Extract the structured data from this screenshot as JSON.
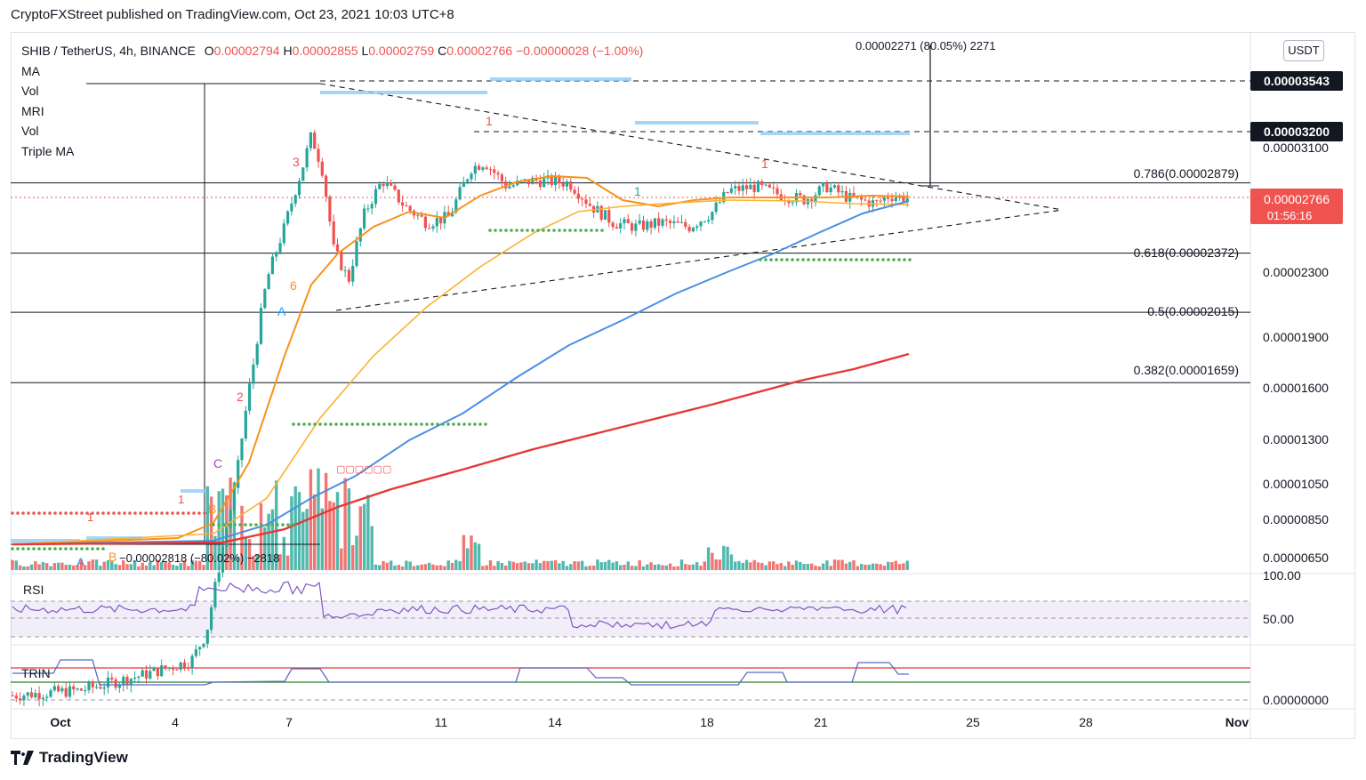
{
  "header": {
    "publisher_line": "CryptoFXStreet published on TradingView.com, Oct 23, 2021 10:03 UTC+8"
  },
  "footer": {
    "brand": "TradingView"
  },
  "legend": {
    "symbol": "SHIB / TetherUS, 4h, BINANCE",
    "o_label": "O",
    "o_value": "0.00002794",
    "h_label": "H",
    "h_value": "0.00002855",
    "l_label": "L",
    "l_value": "0.00002759",
    "c_label": "C",
    "c_value": "0.00002766",
    "change": "−0.00000028 (−1.00%)",
    "indicators": [
      "MA",
      "Vol",
      "MRI",
      "Vol",
      "Triple MA"
    ]
  },
  "currency_button": "USDT",
  "colors": {
    "up": "#26a69a",
    "down": "#ef5350",
    "ma_orange": "#f7931a",
    "ma_yellow": "#f9b234",
    "ma_blue": "#4a90e2",
    "ma_red": "#e53935",
    "rsi": "#7e57c2",
    "trin": "#5c6bc0"
  },
  "chart_data": {
    "type": "candlestick",
    "x_ticks": [
      "Oct",
      "4",
      "7",
      "11",
      "14",
      "18",
      "21",
      "25",
      "28",
      "Nov"
    ],
    "y_ticks": [
      "0.00003100",
      "0.00002300",
      "0.00001900",
      "0.00001600",
      "0.00001300",
      "0.00001050",
      "0.00000850",
      "0.00000650"
    ],
    "price_tags": [
      {
        "label": "0.00003543",
        "style": "dark"
      },
      {
        "label": "0.00003200",
        "style": "dark"
      },
      {
        "label": "0.00002766",
        "sub": "01:56:16",
        "style": "red"
      }
    ],
    "fib_levels": [
      {
        "label": "0.786(0.00002879)",
        "value": 2.879e-05
      },
      {
        "label": "0.618(0.00002372)",
        "value": 2.372e-05
      },
      {
        "label": "0.5(0.00002015)",
        "value": 2.015e-05
      },
      {
        "label": "0.382(0.00001659)",
        "value": 1.659e-05
      }
    ],
    "measure_up": "0.00002271 (80.05%) 2271",
    "measure_down": "−0.00002818 (−80.02%) −2818",
    "marker_labels": [
      "1",
      "2",
      "3",
      "1",
      "1",
      "1",
      "1",
      "A",
      "B",
      "C",
      "A",
      "B",
      "6"
    ],
    "rsi": {
      "label": "RSI",
      "ticks": [
        "100.00",
        "50.00"
      ]
    },
    "trin": {
      "label": "TRIN",
      "ticks": [
        "0.00000000"
      ]
    }
  }
}
